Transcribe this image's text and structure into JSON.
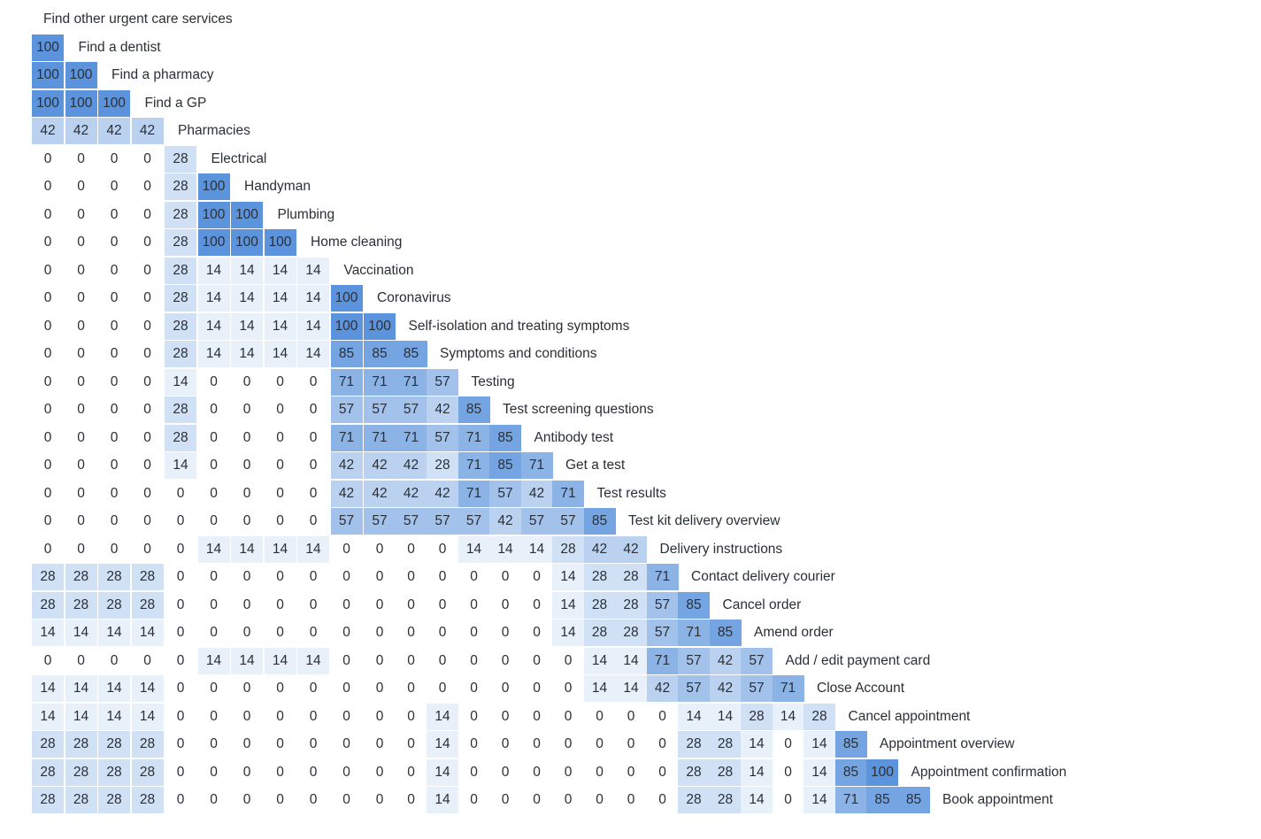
{
  "chart_data": {
    "type": "heatmap",
    "title": "",
    "scale": {
      "min": 0,
      "max": 100,
      "low_color": "#ffffff",
      "high_color": "#5b94dc"
    },
    "labels": [
      "Find other urgent care services",
      "Find a dentist",
      "Find a pharmacy",
      "Find a GP",
      "Pharmacies",
      "Electrical",
      "Handyman",
      "Plumbing",
      "Home cleaning",
      "Vaccination",
      "Coronavirus",
      "Self-isolation and treating symptoms",
      "Symptoms and conditions",
      "Testing",
      "Test screening questions",
      "Antibody test",
      "Get a test",
      "Test results",
      "Test kit delivery overview",
      "Delivery instructions",
      "Contact delivery courier",
      "Cancel order",
      "Amend order",
      "Add / edit payment card",
      "Close Account",
      "Cancel appointment",
      "Appointment overview",
      "Appointment confirmation",
      "Book appointment"
    ],
    "rows": [
      [],
      [
        100
      ],
      [
        100,
        100
      ],
      [
        100,
        100,
        100
      ],
      [
        42,
        42,
        42,
        42
      ],
      [
        0,
        0,
        0,
        0,
        28
      ],
      [
        0,
        0,
        0,
        0,
        28,
        100
      ],
      [
        0,
        0,
        0,
        0,
        28,
        100,
        100
      ],
      [
        0,
        0,
        0,
        0,
        28,
        100,
        100,
        100
      ],
      [
        0,
        0,
        0,
        0,
        28,
        14,
        14,
        14,
        14
      ],
      [
        0,
        0,
        0,
        0,
        28,
        14,
        14,
        14,
        14,
        100
      ],
      [
        0,
        0,
        0,
        0,
        28,
        14,
        14,
        14,
        14,
        100,
        100
      ],
      [
        0,
        0,
        0,
        0,
        28,
        14,
        14,
        14,
        14,
        85,
        85,
        85
      ],
      [
        0,
        0,
        0,
        0,
        14,
        0,
        0,
        0,
        0,
        71,
        71,
        71,
        57
      ],
      [
        0,
        0,
        0,
        0,
        28,
        0,
        0,
        0,
        0,
        57,
        57,
        57,
        42,
        85
      ],
      [
        0,
        0,
        0,
        0,
        28,
        0,
        0,
        0,
        0,
        71,
        71,
        71,
        57,
        71,
        85
      ],
      [
        0,
        0,
        0,
        0,
        14,
        0,
        0,
        0,
        0,
        42,
        42,
        42,
        28,
        71,
        85,
        71
      ],
      [
        0,
        0,
        0,
        0,
        0,
        0,
        0,
        0,
        0,
        42,
        42,
        42,
        42,
        71,
        57,
        42,
        71
      ],
      [
        0,
        0,
        0,
        0,
        0,
        0,
        0,
        0,
        0,
        57,
        57,
        57,
        57,
        57,
        42,
        57,
        57,
        85
      ],
      [
        0,
        0,
        0,
        0,
        0,
        14,
        14,
        14,
        14,
        0,
        0,
        0,
        0,
        14,
        14,
        14,
        28,
        42,
        42
      ],
      [
        28,
        28,
        28,
        28,
        0,
        0,
        0,
        0,
        0,
        0,
        0,
        0,
        0,
        0,
        0,
        0,
        14,
        28,
        28,
        71
      ],
      [
        28,
        28,
        28,
        28,
        0,
        0,
        0,
        0,
        0,
        0,
        0,
        0,
        0,
        0,
        0,
        0,
        14,
        28,
        28,
        57,
        85
      ],
      [
        14,
        14,
        14,
        14,
        0,
        0,
        0,
        0,
        0,
        0,
        0,
        0,
        0,
        0,
        0,
        0,
        14,
        28,
        28,
        57,
        71,
        85
      ],
      [
        0,
        0,
        0,
        0,
        0,
        14,
        14,
        14,
        14,
        0,
        0,
        0,
        0,
        0,
        0,
        0,
        0,
        14,
        14,
        71,
        57,
        42,
        57
      ],
      [
        14,
        14,
        14,
        14,
        0,
        0,
        0,
        0,
        0,
        0,
        0,
        0,
        0,
        0,
        0,
        0,
        0,
        14,
        14,
        42,
        57,
        42,
        57,
        71
      ],
      [
        14,
        14,
        14,
        14,
        0,
        0,
        0,
        0,
        0,
        0,
        0,
        0,
        14,
        0,
        0,
        0,
        0,
        0,
        0,
        0,
        14,
        14,
        28,
        14,
        28
      ],
      [
        28,
        28,
        28,
        28,
        0,
        0,
        0,
        0,
        0,
        0,
        0,
        0,
        14,
        0,
        0,
        0,
        0,
        0,
        0,
        0,
        28,
        28,
        14,
        0,
        14,
        85
      ],
      [
        28,
        28,
        28,
        28,
        0,
        0,
        0,
        0,
        0,
        0,
        0,
        0,
        14,
        0,
        0,
        0,
        0,
        0,
        0,
        0,
        28,
        28,
        14,
        0,
        14,
        85,
        100
      ],
      [
        28,
        28,
        28,
        28,
        0,
        0,
        0,
        0,
        0,
        0,
        0,
        0,
        14,
        0,
        0,
        0,
        0,
        0,
        0,
        0,
        28,
        28,
        14,
        0,
        14,
        71,
        85,
        85
      ]
    ]
  }
}
